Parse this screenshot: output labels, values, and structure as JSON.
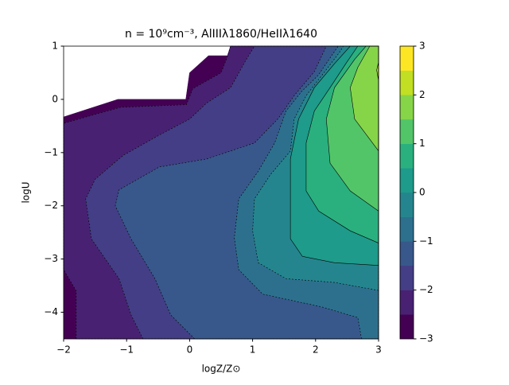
{
  "chart_data": {
    "type": "contour",
    "title": "n = 10⁹cm⁻³, AlIIIλ1860/HeIIλ1640",
    "xlabel": "logZ/Z⊙",
    "ylabel": "logU",
    "xlim": [
      -2,
      3
    ],
    "ylim": [
      -4.5,
      1
    ],
    "xticks": [
      {
        "value": -2,
        "label": "−2"
      },
      {
        "value": -1,
        "label": "−1"
      },
      0,
      1,
      2,
      3
    ],
    "yticks": [
      {
        "value": -4,
        "label": "−4"
      },
      {
        "value": -3,
        "label": "−3"
      },
      {
        "value": -2,
        "label": "−2"
      },
      {
        "value": -1,
        "label": "−1"
      },
      0,
      1
    ],
    "levels": [
      -3,
      -2.5,
      -2,
      -1.5,
      -1,
      -0.5,
      0,
      0.5,
      1,
      1.5,
      2,
      2.5,
      3
    ],
    "colors": [
      "#440154",
      "#482173",
      "#433e85",
      "#38588c",
      "#2d708e",
      "#25858e",
      "#1e9b8a",
      "#2ab07f",
      "#52c569",
      "#86d549",
      "#c2df23",
      "#fde725"
    ],
    "line_color": "#000000",
    "colorbar_ticks": [
      {
        "value": -3,
        "label": "−3"
      },
      {
        "value": -2,
        "label": "−2"
      },
      {
        "value": -1,
        "label": "−1"
      },
      0,
      1,
      2,
      3
    ],
    "regions": [
      {
        "level": -3,
        "x": [
          -2,
          -2,
          -1.14,
          -0.06,
          0,
          0.3,
          0.6,
          0.65,
          3,
          3
        ],
        "y": [
          -4.5,
          -0.33,
          0,
          0,
          0.5,
          0.82,
          0.82,
          1,
          1,
          -4.5
        ]
      },
      {
        "level": -2.5,
        "x": [
          -1.8,
          -1.8,
          -2,
          -2,
          -1.1,
          -0.05,
          0.05,
          0.5,
          0.6,
          0.65,
          3,
          3
        ],
        "y": [
          -4.5,
          -3.6,
          -3.2,
          -0.45,
          -0.15,
          -0.1,
          0.2,
          0.5,
          0.8,
          1,
          1,
          -4.5
        ]
      },
      {
        "level": -2,
        "x": [
          -0.74,
          -0.93,
          -1.12,
          -1.56,
          -1.65,
          -1.5,
          -1.05,
          -0.48,
          0,
          0.27,
          0.65,
          0.9,
          1.03,
          3,
          3
        ],
        "y": [
          -4.5,
          -4.05,
          -3.37,
          -2.62,
          -1.87,
          -1.5,
          -1.05,
          -0.67,
          -0.37,
          -0.07,
          0.22,
          0.75,
          1,
          1,
          -4.5
        ]
      },
      {
        "level": -1.5,
        "x": [
          0.08,
          -0.3,
          -0.55,
          -0.93,
          -1.18,
          -1.12,
          -0.48,
          0.27,
          1.03,
          1.4,
          1.66,
          1.98,
          2.17,
          3,
          3
        ],
        "y": [
          -4.5,
          -4.05,
          -3.37,
          -2.62,
          -2,
          -1.7,
          -1.27,
          -1.12,
          -0.82,
          -0.37,
          0.07,
          0.52,
          1,
          1,
          -4.5
        ]
      },
      {
        "level": -1,
        "x": [
          2.73,
          2.67,
          2.1,
          1.16,
          0.78,
          0.71,
          0.78,
          1.09,
          1.35,
          1.53,
          1.78,
          2.04,
          2.3,
          2.36,
          3,
          3
        ],
        "y": [
          -4.5,
          -4.1,
          -3.9,
          -3.66,
          -3.2,
          -2.6,
          -1.87,
          -1.35,
          -0.82,
          -0.22,
          0.15,
          0.45,
          0.9,
          1,
          1,
          -4.5
        ]
      },
      {
        "level": -0.5,
        "x": [
          3,
          2.3,
          1.53,
          1.09,
          1,
          1.03,
          1.28,
          1.6,
          1.66,
          1.85,
          2.1,
          2.39,
          2.44,
          3
        ],
        "y": [
          -3.59,
          -3.44,
          -3.37,
          -3.07,
          -2.47,
          -1.87,
          -1.42,
          -0.97,
          -0.37,
          0.07,
          0.45,
          0.9,
          1,
          1
        ]
      },
      {
        "level": 0,
        "x": [
          3,
          2.3,
          1.79,
          1.6,
          1.6,
          1.73,
          1.98,
          2.3,
          2.55,
          3
        ],
        "y": [
          -3.12,
          -3.07,
          -2.95,
          -2.62,
          -1.12,
          -0.37,
          0.22,
          0.67,
          1,
          1
        ]
      },
      {
        "level": 0.5,
        "x": [
          3,
          2.55,
          2.05,
          1.85,
          1.85,
          1.98,
          2.23,
          2.48,
          2.67,
          3
        ],
        "y": [
          -2.7,
          -2.47,
          -2.1,
          -1.72,
          -0.82,
          -0.22,
          0.22,
          0.67,
          1,
          1
        ]
      },
      {
        "level": 1,
        "x": [
          3,
          2.55,
          2.23,
          2.17,
          2.3,
          2.62,
          2.8,
          3
        ],
        "y": [
          -2.1,
          -1.72,
          -1.2,
          -0.37,
          0.22,
          0.75,
          1,
          1
        ]
      },
      {
        "level": 1.5,
        "x": [
          3,
          2.62,
          2.55,
          2.67,
          2.86,
          3
        ],
        "y": [
          -0.97,
          -0.37,
          0.22,
          0.6,
          1,
          1
        ]
      },
      {
        "level": 2,
        "x": [
          3,
          2.97,
          3
        ],
        "y": [
          0.7,
          0.55,
          0.35
        ]
      }
    ]
  }
}
